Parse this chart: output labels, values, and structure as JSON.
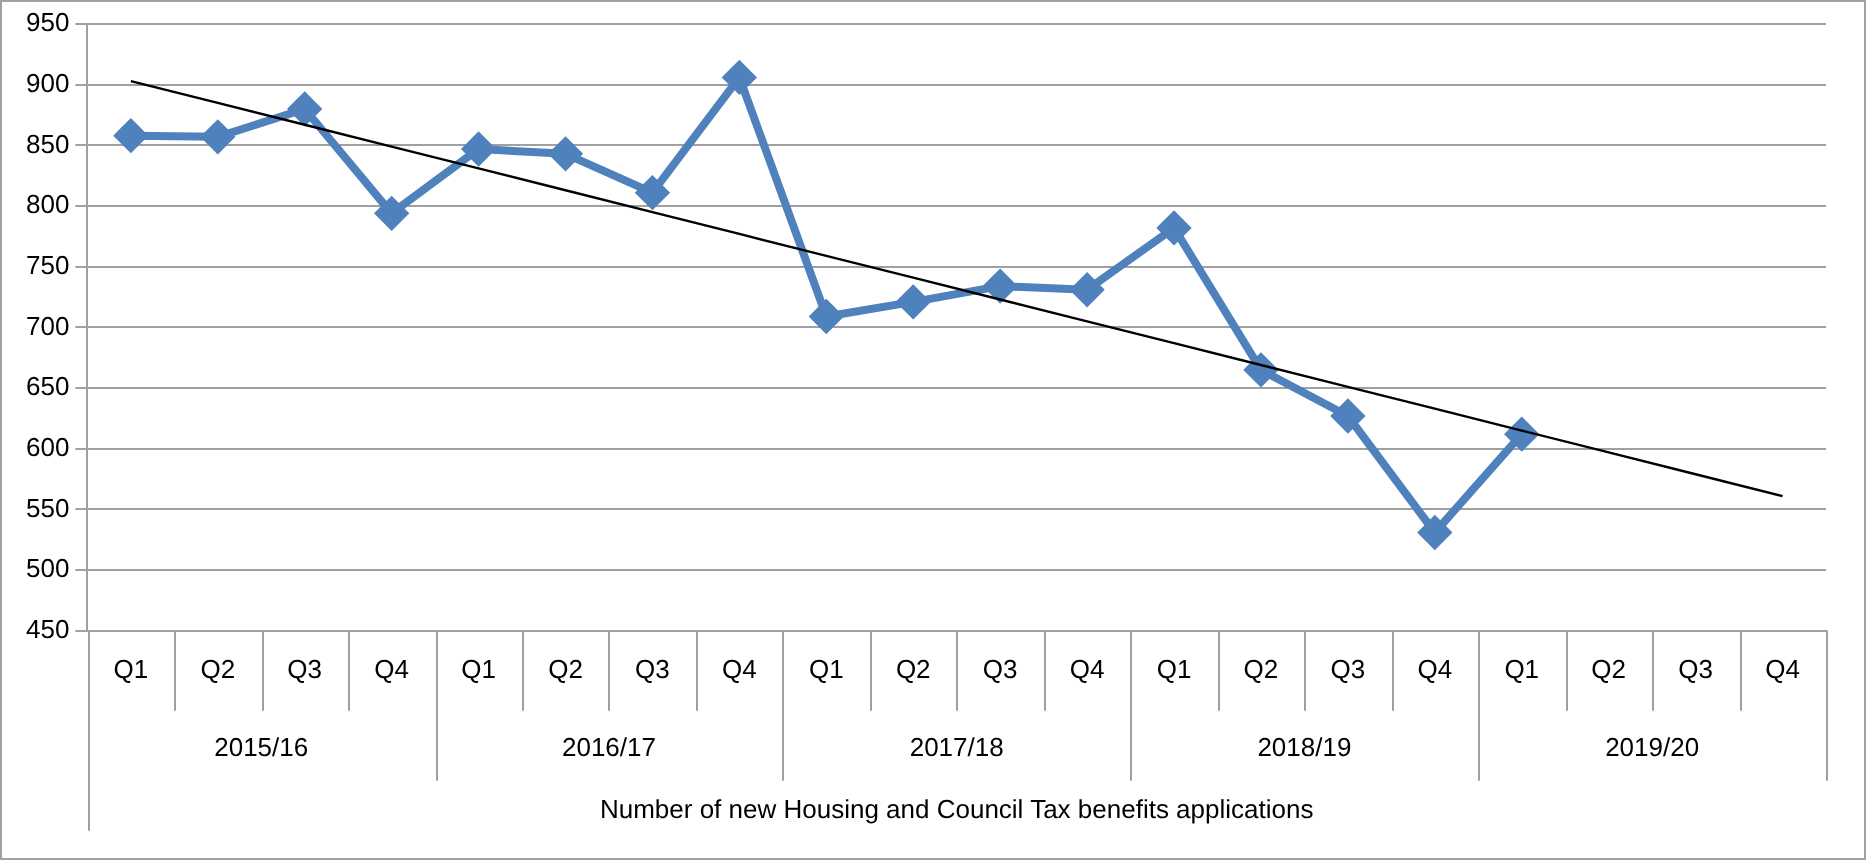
{
  "chart_data": {
    "type": "line",
    "xlabel": "Number of new Housing and Council Tax benefits applications",
    "categories": [
      "Q1",
      "Q2",
      "Q3",
      "Q4",
      "Q1",
      "Q2",
      "Q3",
      "Q4",
      "Q1",
      "Q2",
      "Q3",
      "Q4",
      "Q1",
      "Q2",
      "Q3",
      "Q4",
      "Q1",
      "Q2",
      "Q3",
      "Q4"
    ],
    "annotations": [
      "2015/16",
      "2016/17",
      "2017/18",
      "2018/19",
      "2019/20"
    ],
    "series": [
      {
        "color": "#4f81bd",
        "marker": "diamond",
        "values": [
          858,
          857,
          880,
          794,
          847,
          843,
          811,
          906,
          709,
          721,
          734,
          731,
          782,
          665,
          627,
          531,
          612,
          null,
          null,
          null
        ]
      },
      {
        "color": "#000000",
        "marker": "none",
        "values": [
          903,
          885,
          867,
          849,
          831,
          813,
          795,
          777,
          759,
          741,
          723,
          705,
          687,
          669,
          651,
          633,
          615,
          597,
          579,
          561
        ]
      }
    ],
    "ylim": [
      450,
      950
    ],
    "yticks": [
      450,
      500,
      550,
      600,
      650,
      700,
      750,
      800,
      850,
      900,
      950
    ],
    "grid": "y",
    "legend": false
  }
}
